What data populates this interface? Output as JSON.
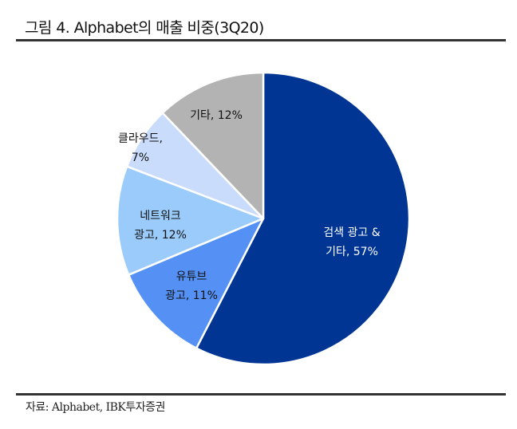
{
  "header": {
    "title": "그림 4. Alphabet의 매출 비중(3Q20)"
  },
  "footer": {
    "source": "자료: Alphabet, IBK투자증권"
  },
  "chart_data": {
    "type": "pie",
    "title": "그림 4. Alphabet의 매출 비중(3Q20)",
    "categories": [
      "검색 광고 & 기타",
      "유튜브 광고",
      "네트워크 광고",
      "클라우드",
      "기타"
    ],
    "values": [
      57,
      11,
      12,
      7,
      12
    ],
    "unit": "%",
    "colors": [
      "#003594",
      "#5591F5",
      "#9ACBFB",
      "#C9DCFB",
      "#B3B3B3"
    ],
    "start_angle_deg": 0,
    "direction": "clockwise",
    "slices": [
      {
        "name": "검색 광고 & 기타",
        "value": 57,
        "color": "#003594",
        "label_lines": [
          "검색 광고 &",
          "기타, 57%"
        ],
        "label_color": "#ffffff"
      },
      {
        "name": "유튜브 광고",
        "value": 11,
        "color": "#5591F5",
        "label_lines": [
          "유튜브",
          "광고, 11%"
        ],
        "label_color": "#111111"
      },
      {
        "name": "네트워크 광고",
        "value": 12,
        "color": "#9ACBFB",
        "label_lines": [
          "네트워크",
          "광고, 12%"
        ],
        "label_color": "#111111"
      },
      {
        "name": "클라우드",
        "value": 7,
        "color": "#C9DCFB",
        "label_lines": [
          "클라우드,",
          "7%"
        ],
        "label_color": "#111111"
      },
      {
        "name": "기타",
        "value": 12,
        "color": "#B3B3B3",
        "label_lines": [
          "기타, 12%"
        ],
        "label_color": "#111111"
      }
    ],
    "legend": "none (data labels inside slices)"
  }
}
